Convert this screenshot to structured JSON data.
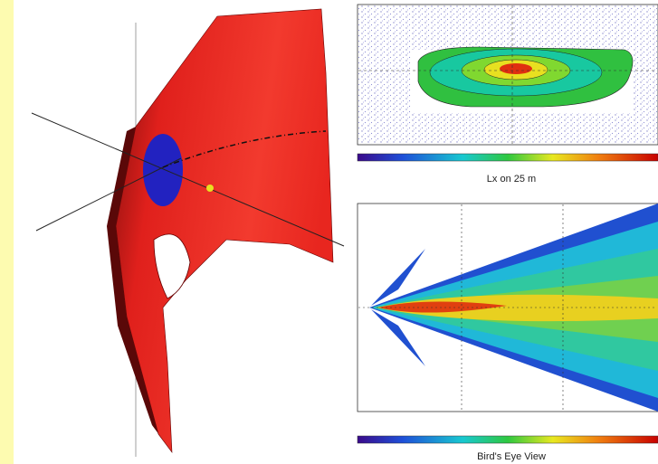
{
  "captions": {
    "top_plot": "Lx on 25 m",
    "bottom_plot": "Bird's Eye View"
  }
}
